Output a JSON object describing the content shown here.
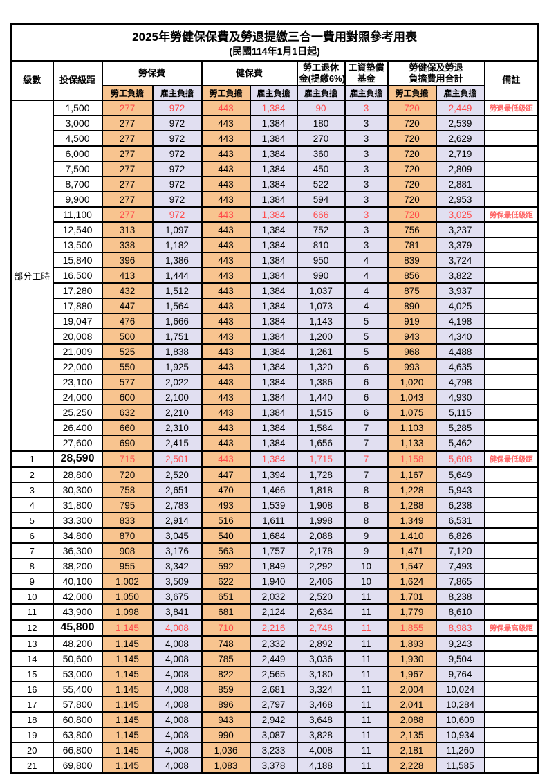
{
  "title": {
    "line1": "2025年勞健保保費及勞退提繳三合一費用對照參考用表",
    "line2": "(民國114年1月1日起)"
  },
  "header": {
    "level": "級數",
    "salary_bracket": "投保級距",
    "labor_insurance": "勞保費",
    "health_insurance": "健保費",
    "pension_l1": "勞工退休",
    "pension_l2": "金(提繳6%)",
    "wage_fund_l1": "工資墊償",
    "wage_fund_l2": "基金",
    "total_l1": "勞健保及勞退",
    "total_l2": "負擔費用合計",
    "employee_burden": "勞工負擔",
    "employer_burden": "雇主負擔",
    "note": "備註"
  },
  "part_time_label": "部分工時",
  "part_time_rowspan": 23,
  "colors": {
    "employee_bg": "#F8C48F",
    "employer_bg": "#E1DFF1",
    "highlight_red": "#FF4A4A",
    "note_red": "#FF6666",
    "border": "#000000"
  },
  "rows": [
    {
      "level": null,
      "salary": "1,500",
      "values": [
        "277",
        "972",
        "443",
        "1,384",
        "90",
        "3",
        "720",
        "2,449"
      ],
      "note": "勞退最低級距",
      "highlight": true,
      "thick": false
    },
    {
      "level": null,
      "salary": "3,000",
      "values": [
        "277",
        "972",
        "443",
        "1,384",
        "180",
        "3",
        "720",
        "2,539"
      ],
      "note": "",
      "highlight": false,
      "thick": false
    },
    {
      "level": null,
      "salary": "4,500",
      "values": [
        "277",
        "972",
        "443",
        "1,384",
        "270",
        "3",
        "720",
        "2,629"
      ],
      "note": "",
      "highlight": false,
      "thick": false
    },
    {
      "level": null,
      "salary": "6,000",
      "values": [
        "277",
        "972",
        "443",
        "1,384",
        "360",
        "3",
        "720",
        "2,719"
      ],
      "note": "",
      "highlight": false,
      "thick": false
    },
    {
      "level": null,
      "salary": "7,500",
      "values": [
        "277",
        "972",
        "443",
        "1,384",
        "450",
        "3",
        "720",
        "2,809"
      ],
      "note": "",
      "highlight": false,
      "thick": false
    },
    {
      "level": null,
      "salary": "8,700",
      "values": [
        "277",
        "972",
        "443",
        "1,384",
        "522",
        "3",
        "720",
        "2,881"
      ],
      "note": "",
      "highlight": false,
      "thick": false
    },
    {
      "level": null,
      "salary": "9,900",
      "values": [
        "277",
        "972",
        "443",
        "1,384",
        "594",
        "3",
        "720",
        "2,953"
      ],
      "note": "",
      "highlight": false,
      "thick": false
    },
    {
      "level": null,
      "salary": "11,100",
      "values": [
        "277",
        "972",
        "443",
        "1,384",
        "666",
        "3",
        "720",
        "3,025"
      ],
      "note": "勞保最低級距",
      "highlight": true,
      "thick": false
    },
    {
      "level": null,
      "salary": "12,540",
      "values": [
        "313",
        "1,097",
        "443",
        "1,384",
        "752",
        "3",
        "756",
        "3,237"
      ],
      "note": "",
      "highlight": false,
      "thick": false
    },
    {
      "level": null,
      "salary": "13,500",
      "values": [
        "338",
        "1,182",
        "443",
        "1,384",
        "810",
        "3",
        "781",
        "3,379"
      ],
      "note": "",
      "highlight": false,
      "thick": false
    },
    {
      "level": null,
      "salary": "15,840",
      "values": [
        "396",
        "1,386",
        "443",
        "1,384",
        "950",
        "4",
        "839",
        "3,724"
      ],
      "note": "",
      "highlight": false,
      "thick": false
    },
    {
      "level": null,
      "salary": "16,500",
      "values": [
        "413",
        "1,444",
        "443",
        "1,384",
        "990",
        "4",
        "856",
        "3,822"
      ],
      "note": "",
      "highlight": false,
      "thick": false
    },
    {
      "level": null,
      "salary": "17,280",
      "values": [
        "432",
        "1,512",
        "443",
        "1,384",
        "1,037",
        "4",
        "875",
        "3,937"
      ],
      "note": "",
      "highlight": false,
      "thick": false
    },
    {
      "level": null,
      "salary": "17,880",
      "values": [
        "447",
        "1,564",
        "443",
        "1,384",
        "1,073",
        "4",
        "890",
        "4,025"
      ],
      "note": "",
      "highlight": false,
      "thick": false
    },
    {
      "level": null,
      "salary": "19,047",
      "values": [
        "476",
        "1,666",
        "443",
        "1,384",
        "1,143",
        "5",
        "919",
        "4,198"
      ],
      "note": "",
      "highlight": false,
      "thick": false
    },
    {
      "level": null,
      "salary": "20,008",
      "values": [
        "500",
        "1,751",
        "443",
        "1,384",
        "1,200",
        "5",
        "943",
        "4,340"
      ],
      "note": "",
      "highlight": false,
      "thick": false
    },
    {
      "level": null,
      "salary": "21,009",
      "values": [
        "525",
        "1,838",
        "443",
        "1,384",
        "1,261",
        "5",
        "968",
        "4,488"
      ],
      "note": "",
      "highlight": false,
      "thick": false
    },
    {
      "level": null,
      "salary": "22,000",
      "values": [
        "550",
        "1,925",
        "443",
        "1,384",
        "1,320",
        "6",
        "993",
        "4,635"
      ],
      "note": "",
      "highlight": false,
      "thick": false
    },
    {
      "level": null,
      "salary": "23,100",
      "values": [
        "577",
        "2,022",
        "443",
        "1,384",
        "1,386",
        "6",
        "1,020",
        "4,798"
      ],
      "note": "",
      "highlight": false,
      "thick": false
    },
    {
      "level": null,
      "salary": "24,000",
      "values": [
        "600",
        "2,100",
        "443",
        "1,384",
        "1,440",
        "6",
        "1,043",
        "4,930"
      ],
      "note": "",
      "highlight": false,
      "thick": false
    },
    {
      "level": null,
      "salary": "25,250",
      "values": [
        "632",
        "2,210",
        "443",
        "1,384",
        "1,515",
        "6",
        "1,075",
        "5,115"
      ],
      "note": "",
      "highlight": false,
      "thick": false
    },
    {
      "level": null,
      "salary": "26,400",
      "values": [
        "660",
        "2,310",
        "443",
        "1,384",
        "1,584",
        "7",
        "1,103",
        "5,285"
      ],
      "note": "",
      "highlight": false,
      "thick": false
    },
    {
      "level": null,
      "salary": "27,600",
      "values": [
        "690",
        "2,415",
        "443",
        "1,384",
        "1,656",
        "7",
        "1,133",
        "5,462"
      ],
      "note": "",
      "highlight": false,
      "thick": false
    },
    {
      "level": "1",
      "salary": "28,590",
      "values": [
        "715",
        "2,501",
        "443",
        "1,384",
        "1,715",
        "7",
        "1,158",
        "5,608"
      ],
      "note": "健保最低級距",
      "highlight": true,
      "thick": true
    },
    {
      "level": "2",
      "salary": "28,800",
      "values": [
        "720",
        "2,520",
        "447",
        "1,394",
        "1,728",
        "7",
        "1,167",
        "5,649"
      ],
      "note": "",
      "highlight": false,
      "thick": false
    },
    {
      "level": "3",
      "salary": "30,300",
      "values": [
        "758",
        "2,651",
        "470",
        "1,466",
        "1,818",
        "8",
        "1,228",
        "5,943"
      ],
      "note": "",
      "highlight": false,
      "thick": false
    },
    {
      "level": "4",
      "salary": "31,800",
      "values": [
        "795",
        "2,783",
        "493",
        "1,539",
        "1,908",
        "8",
        "1,288",
        "6,238"
      ],
      "note": "",
      "highlight": false,
      "thick": false
    },
    {
      "level": "5",
      "salary": "33,300",
      "values": [
        "833",
        "2,914",
        "516",
        "1,611",
        "1,998",
        "8",
        "1,349",
        "6,531"
      ],
      "note": "",
      "highlight": false,
      "thick": false
    },
    {
      "level": "6",
      "salary": "34,800",
      "values": [
        "870",
        "3,045",
        "540",
        "1,684",
        "2,088",
        "9",
        "1,410",
        "6,826"
      ],
      "note": "",
      "highlight": false,
      "thick": false
    },
    {
      "level": "7",
      "salary": "36,300",
      "values": [
        "908",
        "3,176",
        "563",
        "1,757",
        "2,178",
        "9",
        "1,471",
        "7,120"
      ],
      "note": "",
      "highlight": false,
      "thick": false
    },
    {
      "level": "8",
      "salary": "38,200",
      "values": [
        "955",
        "3,342",
        "592",
        "1,849",
        "2,292",
        "10",
        "1,547",
        "7,493"
      ],
      "note": "",
      "highlight": false,
      "thick": false
    },
    {
      "level": "9",
      "salary": "40,100",
      "values": [
        "1,002",
        "3,509",
        "622",
        "1,940",
        "2,406",
        "10",
        "1,624",
        "7,865"
      ],
      "note": "",
      "highlight": false,
      "thick": false
    },
    {
      "level": "10",
      "salary": "42,000",
      "values": [
        "1,050",
        "3,675",
        "651",
        "2,032",
        "2,520",
        "11",
        "1,701",
        "8,238"
      ],
      "note": "",
      "highlight": false,
      "thick": false
    },
    {
      "level": "11",
      "salary": "43,900",
      "values": [
        "1,098",
        "3,841",
        "681",
        "2,124",
        "2,634",
        "11",
        "1,779",
        "8,610"
      ],
      "note": "",
      "highlight": false,
      "thick": false
    },
    {
      "level": "12",
      "salary": "45,800",
      "values": [
        "1,145",
        "4,008",
        "710",
        "2,216",
        "2,748",
        "11",
        "1,855",
        "8,983"
      ],
      "note": "勞保最高級距",
      "highlight": true,
      "thick": true
    },
    {
      "level": "13",
      "salary": "48,200",
      "values": [
        "1,145",
        "4,008",
        "748",
        "2,332",
        "2,892",
        "11",
        "1,893",
        "9,243"
      ],
      "note": "",
      "highlight": false,
      "thick": false
    },
    {
      "level": "14",
      "salary": "50,600",
      "values": [
        "1,145",
        "4,008",
        "785",
        "2,449",
        "3,036",
        "11",
        "1,930",
        "9,504"
      ],
      "note": "",
      "highlight": false,
      "thick": false
    },
    {
      "level": "15",
      "salary": "53,000",
      "values": [
        "1,145",
        "4,008",
        "822",
        "2,565",
        "3,180",
        "11",
        "1,967",
        "9,764"
      ],
      "note": "",
      "highlight": false,
      "thick": false
    },
    {
      "level": "16",
      "salary": "55,400",
      "values": [
        "1,145",
        "4,008",
        "859",
        "2,681",
        "3,324",
        "11",
        "2,004",
        "10,024"
      ],
      "note": "",
      "highlight": false,
      "thick": false
    },
    {
      "level": "17",
      "salary": "57,800",
      "values": [
        "1,145",
        "4,008",
        "896",
        "2,797",
        "3,468",
        "11",
        "2,041",
        "10,284"
      ],
      "note": "",
      "highlight": false,
      "thick": false
    },
    {
      "level": "18",
      "salary": "60,800",
      "values": [
        "1,145",
        "4,008",
        "943",
        "2,942",
        "3,648",
        "11",
        "2,088",
        "10,609"
      ],
      "note": "",
      "highlight": false,
      "thick": false
    },
    {
      "level": "19",
      "salary": "63,800",
      "values": [
        "1,145",
        "4,008",
        "990",
        "3,087",
        "3,828",
        "11",
        "2,135",
        "10,934"
      ],
      "note": "",
      "highlight": false,
      "thick": false
    },
    {
      "level": "20",
      "salary": "66,800",
      "values": [
        "1,145",
        "4,008",
        "1,036",
        "3,233",
        "4,008",
        "11",
        "2,181",
        "11,260"
      ],
      "note": "",
      "highlight": false,
      "thick": false
    },
    {
      "level": "21",
      "salary": "69,800",
      "values": [
        "1,145",
        "4,008",
        "1,083",
        "3,378",
        "4,188",
        "11",
        "2,228",
        "11,585"
      ],
      "note": "",
      "highlight": false,
      "thick": false
    }
  ]
}
